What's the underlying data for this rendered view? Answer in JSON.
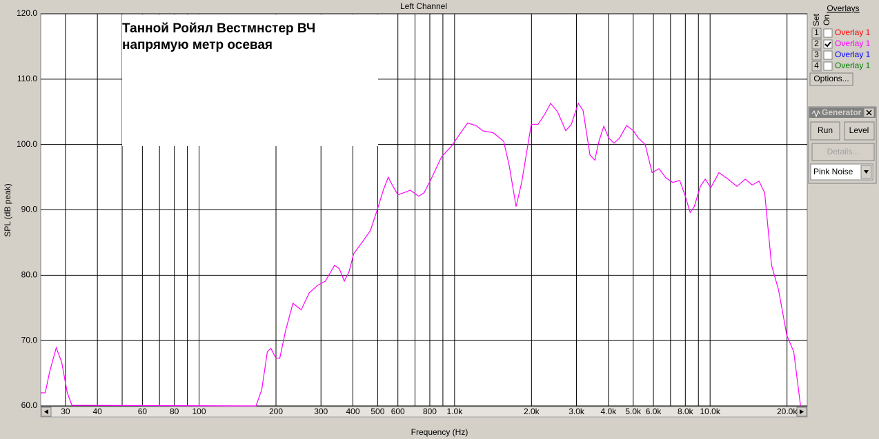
{
  "chart_data": {
    "type": "line",
    "title": "Left Channel",
    "xlabel": "Frequency (Hz)",
    "ylabel": "SPL (dB peak)",
    "annotation": [
      "Танной Ройял Вестмнстер  ВЧ",
      "напрямую  метр  осевая"
    ],
    "log_x": true,
    "grid": true,
    "xlim": [
      24,
      24000
    ],
    "ylim": [
      60,
      120
    ],
    "xticks": [
      30,
      40,
      60,
      80,
      100,
      200,
      300,
      400,
      500,
      600,
      800,
      {
        "value": 1000,
        "label": "1.0k"
      },
      {
        "value": 2000,
        "label": "2.0k"
      },
      {
        "value": 3000,
        "label": "3.0k"
      },
      {
        "value": 4000,
        "label": "4.0k"
      },
      {
        "value": 5000,
        "label": "5.0k"
      },
      {
        "value": 6000,
        "label": "6.0k"
      },
      {
        "value": 8000,
        "label": "8.0k"
      },
      {
        "value": 10000,
        "label": "10.0k"
      },
      {
        "value": 20000,
        "label": "20.0k"
      }
    ],
    "x_minor_grid": [
      50,
      70,
      90,
      700,
      900,
      7000,
      9000
    ],
    "yticks": [
      {
        "value": 60,
        "label": "60.0"
      },
      {
        "value": 70,
        "label": "70.0"
      },
      {
        "value": 80,
        "label": "80.0"
      },
      {
        "value": 90,
        "label": "90.0"
      },
      {
        "value": 100,
        "label": "100.0"
      },
      {
        "value": 110,
        "label": "110.0"
      },
      {
        "value": 120,
        "label": "120.0"
      }
    ],
    "x": [
      24,
      25,
      26,
      27.6,
      29,
      30.5,
      31.8,
      167,
      176,
      185,
      191,
      200,
      207,
      218,
      233,
      251,
      270,
      290,
      312,
      339,
      354,
      370,
      386,
      403,
      434,
      468,
      501,
      527,
      550,
      574,
      600,
      631,
      671,
      723,
      760,
      809,
      889,
      975,
      1044,
      1125,
      1213,
      1290,
      1416,
      1556,
      1636,
      1741,
      1830,
      1996,
      2124,
      2260,
      2376,
      2529,
      2724,
      2864,
      3049,
      3184,
      3388,
      3539,
      3673,
      3838,
      4009,
      4209,
      4426,
      4710,
      5012,
      5236,
      5572,
      5929,
      6310,
      6714,
      7145,
      7603,
      7996,
      8356,
      8670,
      9162,
      9573,
      10061,
      10837,
      11748,
      12738,
      13732,
      14611,
      15545,
      16350,
      17400,
      18520,
      19960,
      21240,
      22600
    ],
    "series": [
      {
        "color": "#ff00ff",
        "values": [
          62,
          62,
          65.2,
          68.9,
          66.7,
          62,
          60.1,
          60,
          62.5,
          68.3,
          68.8,
          67.3,
          67.3,
          71.5,
          75.7,
          74.7,
          77.3,
          78.4,
          79.1,
          81.5,
          81,
          79.1,
          80.5,
          83.3,
          85,
          86.8,
          90.3,
          93.1,
          95,
          93.6,
          92.3,
          92.6,
          93,
          92.1,
          92.6,
          94.7,
          98.1,
          99.8,
          101.5,
          103.3,
          102.9,
          102.1,
          101.8,
          100.5,
          96.8,
          90.5,
          94.2,
          103.1,
          103.1,
          104.7,
          106.3,
          105,
          102.1,
          103.1,
          106.3,
          105.2,
          98.4,
          97.6,
          100.5,
          102.8,
          101,
          100.2,
          101,
          102.9,
          102.1,
          101,
          100,
          95.7,
          96.3,
          94.9,
          94.2,
          94.5,
          92.1,
          89.6,
          90.5,
          93.6,
          94.7,
          93.4,
          95.7,
          94.7,
          93.6,
          94.7,
          93.8,
          94.4,
          92.6,
          81.5,
          77.8,
          70.8,
          68.3,
          60
        ]
      }
    ]
  },
  "overlays": {
    "title": "Overlays",
    "set_label": "Set",
    "on_label": "On",
    "options_button": "Options...",
    "rows": [
      {
        "set": "1",
        "name": "Overlay 1",
        "color": "#ff0000",
        "checked": false
      },
      {
        "set": "2",
        "name": "Overlay 1",
        "color": "#ff00ff",
        "checked": true
      },
      {
        "set": "3",
        "name": "Overlay 1",
        "color": "#0000ff",
        "checked": false
      },
      {
        "set": "4",
        "name": "Overlay 1",
        "color": "#008000",
        "checked": false
      }
    ]
  },
  "generator": {
    "title": "Generator",
    "run_button": "Run",
    "level_button": "Level",
    "details_button": "Details...",
    "signal": "Pink Noise"
  }
}
